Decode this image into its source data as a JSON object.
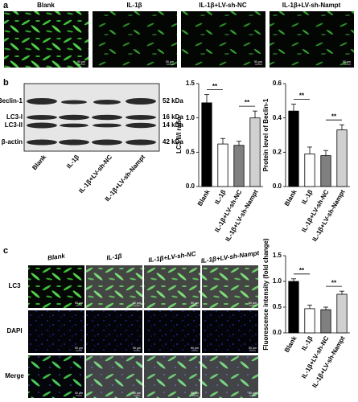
{
  "panel_a": {
    "label": "a",
    "images": [
      {
        "label": "Blank",
        "scale": "50 μm"
      },
      {
        "label": "IL-1β",
        "scale": "50 μm"
      },
      {
        "label": "IL-1β+LV-sh-NC",
        "scale": "50 μm"
      },
      {
        "label": "IL-1β+LV-sh-Nampt",
        "scale": "50 μm"
      }
    ]
  },
  "panel_b": {
    "label": "b",
    "blot_rows": [
      {
        "name": "Beclin-1",
        "size": "52 kDa"
      },
      {
        "name": "LC3-I",
        "size": "16 kDa"
      },
      {
        "name": "LC3-II",
        "size": "14 kDa"
      },
      {
        "name": "β-actin",
        "size": "42 kDa"
      }
    ],
    "lanes": [
      "Blank",
      "IL-1β",
      "IL-1β+LV-sh-NC",
      "IL-1β+LV-sh-Nampt"
    ]
  },
  "panel_c": {
    "label": "c",
    "columns": [
      "Blank",
      "IL-1β",
      "IL-1β+LV-sh-NC",
      "IL-1β+LV-sh-Nampt"
    ],
    "rows": [
      "LC3",
      "DAPI",
      "Merge"
    ],
    "scale_bars": [
      [
        "50 μm",
        "50 μm",
        "50 μm",
        "50 μm"
      ],
      [
        "50 μm",
        "50 μm",
        "50 μm",
        "50 μm"
      ],
      [
        "50 μm",
        "50 μm",
        "50 μm",
        "50 μm"
      ]
    ]
  },
  "chart_data": [
    {
      "type": "bar",
      "ylabel": "LC3 II/I ratio",
      "categories": [
        "Blank",
        "IL-1β",
        "IL-1β+LV-sh-NC",
        "IL-1β+LV-sh-Nampt"
      ],
      "values": [
        1.22,
        0.62,
        0.6,
        1.0
      ],
      "errors": [
        0.12,
        0.08,
        0.06,
        0.1
      ],
      "colors": [
        "#000000",
        "#ffffff",
        "#808080",
        "#d0d0d0"
      ],
      "ylim": [
        0,
        1.5
      ],
      "yticks": [
        {
          "value": 0,
          "label": "0.0"
        },
        0.5,
        {
          "value": 1,
          "label": "1.0"
        },
        1.5
      ],
      "annotations": [
        "**",
        "**"
      ]
    },
    {
      "type": "bar",
      "ylabel": "Protein level of Beclin-1",
      "categories": [
        "Blank",
        "IL-1β",
        "IL-1β+LV-sh-NC",
        "IL-1β+LV-sh-Nampt"
      ],
      "values": [
        0.44,
        0.19,
        0.18,
        0.33
      ],
      "errors": [
        0.04,
        0.04,
        0.03,
        0.03
      ],
      "colors": [
        "#000000",
        "#ffffff",
        "#808080",
        "#d0d0d0"
      ],
      "ylim": [
        0,
        0.6
      ],
      "yticks": [
        {
          "value": 0,
          "label": "0.0"
        },
        0.2,
        0.4,
        0.6
      ],
      "annotations": [
        "**",
        "**"
      ]
    },
    {
      "type": "bar",
      "ylabel": "Fluorescence intensity (fold change)",
      "categories": [
        "Blank",
        "IL-1β",
        "IL-1β+LV-sh-NC",
        "IL-1β+LV-sh-Nampt"
      ],
      "values": [
        1.0,
        0.47,
        0.45,
        0.75
      ],
      "errors": [
        0.05,
        0.07,
        0.05,
        0.06
      ],
      "colors": [
        "#000000",
        "#ffffff",
        "#808080",
        "#d0d0d0"
      ],
      "ylim": [
        0,
        1.5
      ],
      "yticks": [
        {
          "value": 0,
          "label": "0.0"
        },
        0.5,
        {
          "value": 1,
          "label": "1.0"
        },
        1.5
      ],
      "annotations": [
        "**",
        "**"
      ]
    }
  ]
}
